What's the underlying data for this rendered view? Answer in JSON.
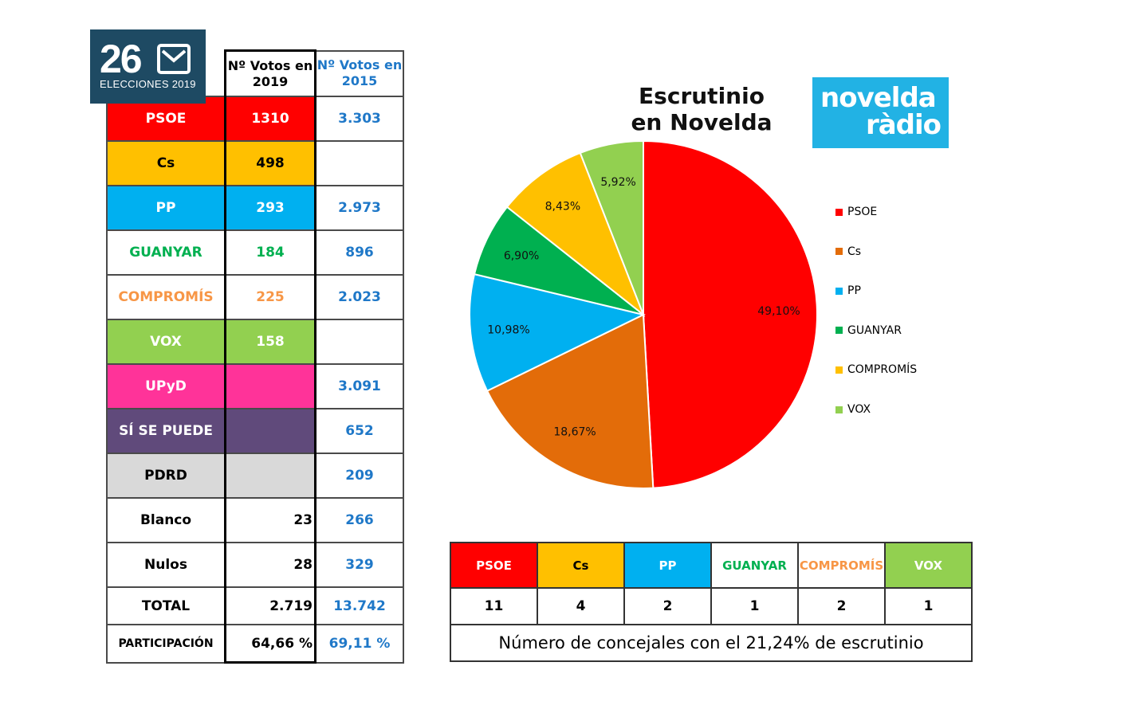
{
  "logo": {
    "number": "26",
    "subtitle": "ELECCIONES 2019"
  },
  "radio_logo": {
    "line1": "novelda",
    "line2": "ràdio"
  },
  "results_table": {
    "headers": [
      "",
      "Nº Votos en 2019",
      "Nº Votos en 2015"
    ],
    "rows": [
      {
        "party": "PSOE",
        "v2019": "1310",
        "v2015": "3.303",
        "bg": "#ff0000",
        "fg": "#ffffff"
      },
      {
        "party": "Cs",
        "v2019": "498",
        "v2015": "",
        "bg": "#ffc000",
        "fg": "#000000"
      },
      {
        "party": "PP",
        "v2019": "293",
        "v2015": "2.973",
        "bg": "#00b0f0",
        "fg": "#ffffff"
      },
      {
        "party": "GUANYAR",
        "v2019": "184",
        "v2015": "896",
        "bg": "#ffffff",
        "fg": "#00b050"
      },
      {
        "party": "COMPROMÍS",
        "v2019": "225",
        "v2015": "2.023",
        "bg": "#ffffff",
        "fg": "#f79646"
      },
      {
        "party": "VOX",
        "v2019": "158",
        "v2015": "",
        "bg": "#92d050",
        "fg": "#ffffff"
      },
      {
        "party": "UPyD",
        "v2019": "",
        "v2015": "3.091",
        "bg": "#ff3399",
        "fg": "#ffffff"
      },
      {
        "party": "SÍ SE PUEDE",
        "v2019": "",
        "v2015": "652",
        "bg": "#604a7b",
        "fg": "#ffffff"
      },
      {
        "party": "PDRD",
        "v2019": "",
        "v2015": "209",
        "bg": "#d9d9d9",
        "fg": "#000000"
      },
      {
        "party": "Blanco",
        "v2019": "23",
        "v2015": "266",
        "bg": "#ffffff",
        "fg": "#000000"
      },
      {
        "party": "Nulos",
        "v2019": "28",
        "v2015": "329",
        "bg": "#ffffff",
        "fg": "#000000"
      },
      {
        "party": "TOTAL",
        "v2019": "2.719",
        "v2015": "13.742",
        "bg": "#ffffff",
        "fg": "#000000"
      },
      {
        "party": "PARTICIPACIÓN",
        "v2019": "64,66 %",
        "v2015": "69,11 %",
        "bg": "#ffffff",
        "fg": "#000000"
      }
    ]
  },
  "chart_data": {
    "type": "pie",
    "title": "Escrutinio en Novelda",
    "title_lines": [
      "Escrutinio",
      "en Novelda"
    ],
    "categories": [
      "PSOE",
      "Cs",
      "PP",
      "GUANYAR",
      "COMPROMÍS",
      "VOX"
    ],
    "values": [
      49.1,
      18.67,
      10.98,
      6.9,
      8.43,
      5.92
    ],
    "labels": [
      "49,10%",
      "18,67%",
      "10,98%",
      "6,90%",
      "8,43%",
      "5,92%"
    ],
    "colors": [
      "#ff0000",
      "#e36c09",
      "#00b0f0",
      "#00b050",
      "#ffc000",
      "#92d050"
    ],
    "legend_position": "right"
  },
  "concejales": {
    "parties": [
      {
        "name": "PSOE",
        "seats": "11",
        "bg": "#ff0000",
        "fg": "#ffffff"
      },
      {
        "name": "Cs",
        "seats": "4",
        "bg": "#ffc000",
        "fg": "#000000"
      },
      {
        "name": "PP",
        "seats": "2",
        "bg": "#00b0f0",
        "fg": "#ffffff"
      },
      {
        "name": "GUANYAR",
        "seats": "1",
        "bg": "#ffffff",
        "fg": "#00b050"
      },
      {
        "name": "COMPROMÍS",
        "seats": "2",
        "bg": "#ffffff",
        "fg": "#f79646"
      },
      {
        "name": "VOX",
        "seats": "1",
        "bg": "#92d050",
        "fg": "#ffffff"
      }
    ],
    "note": "Número de concejales con el 21,24% de escrutinio"
  }
}
